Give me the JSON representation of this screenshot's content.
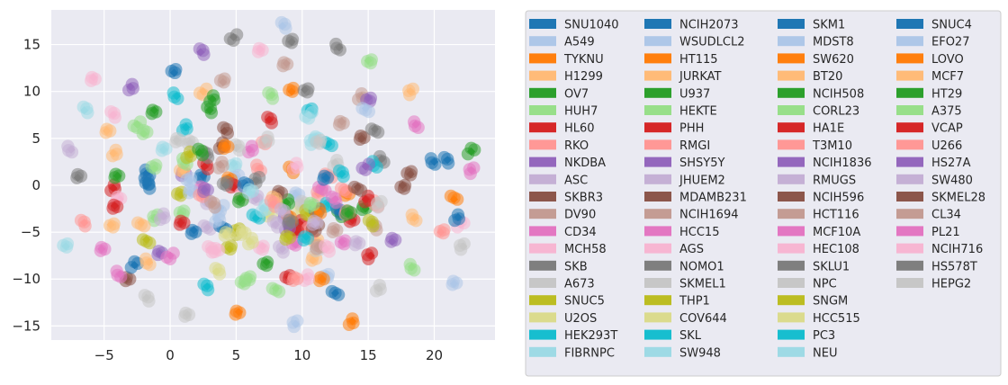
{
  "chart_data": {
    "type": "scatter",
    "title": "",
    "xlabel": "",
    "ylabel": "",
    "xlim": [
      -9,
      24.6
    ],
    "ylim": [
      -16.5,
      18.7
    ],
    "xticks": [
      -5,
      0,
      5,
      10,
      15,
      20
    ],
    "yticks": [
      -15,
      -10,
      -5,
      0,
      5,
      10,
      15
    ],
    "xtick_labels": [
      "−5",
      "0",
      "5",
      "10",
      "15",
      "20"
    ],
    "ytick_labels": [
      "−15",
      "−10",
      "−5",
      "0",
      "5",
      "10",
      "15"
    ],
    "grid": true,
    "background": "#eaeaf2",
    "legend_position": "right",
    "palette": [
      "#1f77b4",
      "#aec7e8",
      "#ff7f0e",
      "#ffbb78",
      "#2ca02c",
      "#98df8a",
      "#d62728",
      "#ff9896",
      "#9467bd",
      "#c5b0d5",
      "#8c564b",
      "#c49c94",
      "#e377c2",
      "#f7b6d2",
      "#7f7f7f",
      "#c7c7c7",
      "#bcbd22",
      "#dbdb8d",
      "#17becf",
      "#9edae5"
    ],
    "series": [
      {
        "name": "SNU1040",
        "points": [
          [
            20,
            2.5
          ],
          [
            21,
            2.7
          ],
          [
            12.5,
            -11.5
          ],
          [
            -1.8,
            1.3
          ],
          [
            -1.8,
            0
          ]
        ]
      },
      {
        "name": "A549",
        "points": [
          [
            8.5,
            17
          ],
          [
            21.5,
            -10.5
          ],
          [
            11.8,
            -9.5
          ],
          [
            9.5,
            -14.8
          ]
        ]
      },
      {
        "name": "TYKNU",
        "points": [
          [
            9.2,
            10
          ],
          [
            5.2,
            -13.5
          ],
          [
            13.8,
            -14.5
          ],
          [
            21.5,
            -1.5
          ]
        ]
      },
      {
        "name": "H1299",
        "points": [
          [
            -4.8,
            5.8
          ],
          [
            -4.3,
            3.4
          ],
          [
            18.2,
            10
          ],
          [
            11,
            -6
          ],
          [
            18.5,
            -3.5
          ]
        ]
      },
      {
        "name": "OV7",
        "points": [
          [
            -1.2,
            8
          ],
          [
            3,
            8
          ],
          [
            14.8,
            -2.5
          ],
          [
            7.3,
            -8.2
          ],
          [
            22.8,
            3.6
          ]
        ]
      },
      {
        "name": "HUH7",
        "points": [
          [
            -2.5,
            6.5
          ],
          [
            -2,
            5.5
          ],
          [
            15,
            13.3
          ],
          [
            18.3,
            -8.7
          ],
          [
            5.5,
            -10.5
          ]
        ]
      },
      {
        "name": "HL60",
        "points": [
          [
            7.5,
            7
          ],
          [
            13.8,
            -3.7
          ],
          [
            -4.3,
            -0.3
          ],
          [
            15.2,
            -7.5
          ],
          [
            9,
            -9.8
          ]
        ]
      },
      {
        "name": "RKO",
        "points": [
          [
            7.2,
            4.5
          ],
          [
            12,
            1.2
          ],
          [
            11.2,
            -0.9
          ],
          [
            20.5,
            -5
          ]
        ]
      },
      {
        "name": "NKDBA",
        "points": [
          [
            1,
            1.3
          ],
          [
            -3,
            10.5
          ],
          [
            8.8,
            -3.5
          ]
        ]
      },
      {
        "name": "ASC",
        "points": [
          [
            -7.5,
            3.8
          ],
          [
            8.5,
            -6.8
          ],
          [
            2.8,
            -4.5
          ]
        ]
      },
      {
        "name": "SKBR3",
        "points": [
          [
            4.1,
            5.8
          ],
          [
            14.5,
            5
          ],
          [
            17.6,
            0
          ]
        ]
      },
      {
        "name": "DV90",
        "points": [
          [
            4,
            11
          ],
          [
            8.8,
            13
          ],
          [
            14.5,
            9.5
          ]
        ]
      },
      {
        "name": "CD34",
        "points": [
          [
            -5.2,
            -6.8
          ],
          [
            6,
            3.8
          ],
          [
            22.8,
            1.6
          ]
        ]
      },
      {
        "name": "MCH58",
        "points": [
          [
            -5.8,
            11.5
          ],
          [
            -4.3,
            7.5
          ],
          [
            -3.8,
            -1.5
          ],
          [
            7,
            -6.5
          ],
          [
            22,
            -4.2
          ]
        ]
      },
      {
        "name": "SKB",
        "points": [
          [
            4.8,
            15.8
          ],
          [
            -7,
            0.8
          ],
          [
            10.2,
            10.2
          ],
          [
            16,
            2.8
          ]
        ]
      },
      {
        "name": "A673",
        "points": [
          [
            -1.8,
            -12
          ],
          [
            1.3,
            -13.8
          ],
          [
            15.8,
            -11
          ],
          [
            22.2,
            -6.5
          ]
        ]
      },
      {
        "name": "SNUC5",
        "points": [
          [
            0.8,
            -1
          ],
          [
            -1.8,
            -5.8
          ],
          [
            5,
            -5
          ]
        ]
      },
      {
        "name": "U2OS",
        "points": [
          [
            5.5,
            -5
          ],
          [
            9.8,
            -2.5
          ]
        ]
      },
      {
        "name": "HEK293T",
        "points": [
          [
            0.5,
            9.5
          ],
          [
            2.8,
            -10.8
          ],
          [
            12,
            4.4
          ],
          [
            15.4,
            2.2
          ]
        ]
      },
      {
        "name": "FIBRNPC",
        "points": [
          [
            -6.5,
            8
          ],
          [
            -0.5,
            3.8
          ],
          [
            4.8,
            2.3
          ],
          [
            10.8,
            4.6
          ],
          [
            -7.9,
            -6.5
          ]
        ]
      },
      {
        "name": "NCIH2073",
        "points": [
          [
            0.3,
            12
          ],
          [
            2.5,
            1
          ],
          [
            21.8,
            -3.4
          ],
          [
            4,
            -4.7
          ]
        ]
      },
      {
        "name": "WSUDLCL2",
        "points": [
          [
            9.5,
            -1
          ],
          [
            3.5,
            -3.6
          ],
          [
            5,
            0.8
          ]
        ]
      },
      {
        "name": "HT115",
        "points": [
          [
            4.5,
            0.8
          ],
          [
            9.2,
            1.6
          ],
          [
            13.5,
            -1
          ]
        ]
      },
      {
        "name": "JURKAT",
        "points": [
          [
            2.5,
            10
          ],
          [
            10.8,
            -8
          ],
          [
            -4.5,
            -4.2
          ]
        ]
      },
      {
        "name": "U937",
        "points": [
          [
            12.8,
            -3
          ],
          [
            -4,
            1
          ],
          [
            3.2,
            9.2
          ]
        ]
      },
      {
        "name": "HEKTE",
        "points": [
          [
            6,
            -10
          ],
          [
            8,
            -11
          ],
          [
            -1.2,
            -3.5
          ],
          [
            0.8,
            -3
          ]
        ]
      },
      {
        "name": "PHH",
        "points": [
          [
            -4.2,
            -2.2
          ],
          [
            9.8,
            -4
          ],
          [
            4.8,
            -0.2
          ]
        ]
      },
      {
        "name": "RMGI",
        "points": [
          [
            6.8,
            1.8
          ],
          [
            -6.5,
            -4
          ],
          [
            13.2,
            -0.5
          ],
          [
            15.5,
            -2
          ],
          [
            10.5,
            -4.8
          ]
        ]
      },
      {
        "name": "SHSY5Y",
        "points": [
          [
            2.3,
            14.2
          ],
          [
            -0.8,
            -7.3
          ],
          [
            15,
            9.3
          ]
        ]
      },
      {
        "name": "JHUEM2",
        "points": [
          [
            6.5,
            -1.5
          ],
          [
            3,
            -1.7
          ],
          [
            -0.5,
            -3.3
          ]
        ]
      },
      {
        "name": "MDAMB231",
        "points": [
          [
            -3.3,
            -10
          ],
          [
            3.8,
            4.2
          ],
          [
            9.2,
            -4.8
          ]
        ]
      },
      {
        "name": "NCIH1694",
        "points": [
          [
            13,
            6.8
          ],
          [
            15.5,
            -4.5
          ]
        ]
      },
      {
        "name": "HCC15",
        "points": [
          [
            0,
            -7.5
          ],
          [
            2.3,
            -0.5
          ],
          [
            13,
            -6
          ],
          [
            18.6,
            6.5
          ]
        ]
      },
      {
        "name": "AGS",
        "points": [
          [
            3,
            -6.8
          ],
          [
            5.5,
            -1
          ],
          [
            9.5,
            2
          ]
        ]
      },
      {
        "name": "NOMO1",
        "points": [
          [
            9.2,
            15.3
          ],
          [
            15.5,
            6
          ],
          [
            6.5,
            0.5
          ]
        ]
      },
      {
        "name": "SKMEL1",
        "points": [
          [
            10,
            -1.8
          ],
          [
            12.5,
            2.4
          ],
          [
            11.2,
            -7
          ]
        ]
      },
      {
        "name": "THP1",
        "points": [
          [
            10.5,
            -3
          ],
          [
            15.3,
            -4
          ]
        ]
      },
      {
        "name": "COV644",
        "points": [
          [
            3.5,
            -9.2
          ],
          [
            7.5,
            -3.2
          ]
        ]
      },
      {
        "name": "SKL",
        "points": [
          [
            10.6,
            7.8
          ],
          [
            12,
            -2
          ],
          [
            1.2,
            6.2
          ],
          [
            6.5,
            -3.5
          ]
        ]
      },
      {
        "name": "SW948",
        "points": [
          [
            11,
            5
          ],
          [
            7,
            -2.5
          ]
        ]
      },
      {
        "name": "SKM1",
        "points": [
          [
            1.8,
            -4.8
          ],
          [
            12.8,
            -2.8
          ],
          [
            5.8,
            0
          ],
          [
            11.2,
            -2.5
          ],
          [
            -2.7,
            -8.5
          ]
        ]
      },
      {
        "name": "MDST8",
        "points": [
          [
            3.8,
            -2.4
          ],
          [
            1.5,
            -0.8
          ]
        ]
      },
      {
        "name": "SW620",
        "points": [
          [
            9,
            -3.5
          ],
          [
            11.5,
            -10
          ]
        ]
      },
      {
        "name": "BT20",
        "points": [
          [
            1,
            1.5
          ],
          [
            -2.2,
            -4
          ]
        ]
      },
      {
        "name": "NCIH508",
        "points": [
          [
            5.3,
            -1.5
          ],
          [
            8.8,
            -1.8
          ]
        ]
      },
      {
        "name": "CORL23",
        "points": [
          [
            1.2,
            2.5
          ],
          [
            7.7,
            9.6
          ]
        ]
      },
      {
        "name": "HA1E",
        "points": [
          [
            2.6,
            2
          ],
          [
            9.5,
            -5
          ]
        ]
      },
      {
        "name": "T3M10",
        "points": [
          [
            2.4,
            -1.2
          ],
          [
            13.5,
            -2.8
          ]
        ]
      },
      {
        "name": "NCIH1836",
        "points": [
          [
            2.6,
            -0.5
          ],
          [
            8.8,
            -4.5
          ]
        ]
      },
      {
        "name": "RMUGS",
        "points": [
          [
            14.2,
            -6
          ],
          [
            8,
            -4.2
          ]
        ]
      },
      {
        "name": "NCIH596",
        "points": [
          [
            11,
            -4.5
          ],
          [
            8.2,
            -1
          ]
        ]
      },
      {
        "name": "HCT116",
        "points": [
          [
            3.2,
            -2
          ],
          [
            12.5,
            -4.8
          ]
        ]
      },
      {
        "name": "MCF10A",
        "points": [
          [
            9.5,
            -6.3
          ],
          [
            11.5,
            -0.2
          ]
        ]
      },
      {
        "name": "HEC108",
        "points": [
          [
            6.8,
            14.5
          ],
          [
            10.3,
            -9.8
          ]
        ]
      },
      {
        "name": "SKLU1",
        "points": [
          [
            12.8,
            14.7
          ],
          [
            2.8,
            3.3
          ]
        ]
      },
      {
        "name": "NPC",
        "points": [
          [
            5,
            4
          ],
          [
            1.5,
            4.5
          ],
          [
            11.2,
            4.8
          ]
        ]
      },
      {
        "name": "SNGM",
        "points": [
          [
            4.5,
            -6.8
          ],
          [
            9,
            -5.5
          ],
          [
            1.5,
            3.3
          ]
        ]
      },
      {
        "name": "HCC515",
        "points": [
          [
            4.2,
            -5.2
          ],
          [
            6,
            -6
          ]
        ]
      },
      {
        "name": "PC3",
        "points": [
          [
            10.3,
            -5.5
          ],
          [
            13,
            1.2
          ]
        ]
      },
      {
        "name": "NEU",
        "points": [
          [
            10.5,
            7.5
          ],
          [
            6,
            -0.8
          ]
        ]
      },
      {
        "name": "SNUC4",
        "points": [
          [
            -1.8,
            0.5
          ],
          [
            11.8,
            0.8
          ]
        ]
      },
      {
        "name": "EFO27",
        "points": [
          [
            1.5,
            0.5
          ],
          [
            14.8,
            8.2
          ]
        ]
      },
      {
        "name": "LOVO",
        "points": [
          [
            4.2,
            4.2
          ],
          [
            11.2,
            -2.8
          ]
        ]
      },
      {
        "name": "MCF7",
        "points": [
          [
            -1.6,
            -8.2
          ],
          [
            8,
            -1.5
          ]
        ]
      },
      {
        "name": "HT29",
        "points": [
          [
            2.2,
            3.5
          ],
          [
            13.5,
            -3
          ]
        ]
      },
      {
        "name": "A375",
        "points": [
          [
            -1.2,
            1.8
          ],
          [
            10.8,
            -2
          ]
        ]
      },
      {
        "name": "VCAP",
        "points": [
          [
            0.8,
            -4
          ],
          [
            14.8,
            -1.5
          ]
        ]
      },
      {
        "name": "U266",
        "points": [
          [
            9.5,
            -9.8
          ],
          [
            7.8,
            -2
          ]
        ]
      },
      {
        "name": "HS27A",
        "points": [
          [
            14.8,
            2
          ],
          [
            16.8,
            -6
          ]
        ]
      },
      {
        "name": "SW480",
        "points": [
          [
            8.5,
            -2.8
          ],
          [
            11,
            -4
          ]
        ]
      },
      {
        "name": "SKMEL28",
        "points": [
          [
            18.2,
            1.2
          ],
          [
            14.2,
            -0.2
          ]
        ]
      },
      {
        "name": "CL34",
        "points": [
          [
            11.2,
            -6.5
          ],
          [
            3.8,
            2.2
          ]
        ]
      },
      {
        "name": "PL21",
        "points": [
          [
            -3.8,
            -9.5
          ],
          [
            12.5,
            -1.5
          ]
        ]
      },
      {
        "name": "NCIH716",
        "points": [
          [
            11.8,
            -6.8
          ],
          [
            3.5,
            -7
          ]
        ]
      },
      {
        "name": "HS578T",
        "points": [
          [
            4.2,
            0
          ],
          [
            9.2,
            -3.8
          ]
        ]
      },
      {
        "name": "HEPG2",
        "points": [
          [
            0.5,
            4.8
          ],
          [
            7.2,
            4.8
          ],
          [
            15.8,
            -2
          ]
        ]
      }
    ]
  }
}
